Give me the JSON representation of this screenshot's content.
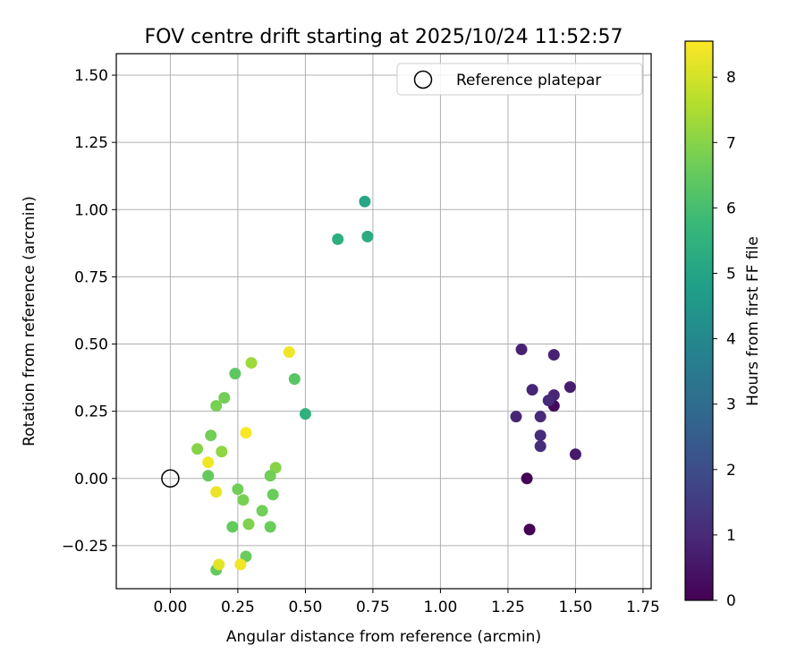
{
  "chart_data": {
    "type": "scatter",
    "title": "FOV centre drift starting at 2025/10/24 11:52:57",
    "xlabel": "Angular distance from reference (arcmin)",
    "ylabel": "Rotation from reference (arcmin)",
    "xlim": [
      -0.2,
      1.78
    ],
    "ylim": [
      -0.41,
      1.58
    ],
    "x_ticks": [
      "0.00",
      "0.25",
      "0.50",
      "0.75",
      "1.00",
      "1.25",
      "1.50",
      "1.75"
    ],
    "x_tick_values": [
      0,
      0.25,
      0.5,
      0.75,
      1.0,
      1.25,
      1.5,
      1.75
    ],
    "y_ticks": [
      "−0.25",
      "0.00",
      "0.25",
      "0.50",
      "0.75",
      "1.00",
      "1.25",
      "1.50"
    ],
    "y_tick_values": [
      -0.25,
      0,
      0.25,
      0.5,
      0.75,
      1.0,
      1.25,
      1.5
    ],
    "grid": true,
    "legend": {
      "position": "top-right",
      "entries": [
        {
          "label": "Reference platepar",
          "marker": "open-circle"
        }
      ]
    },
    "colorbar": {
      "label": "Hours from first FF file",
      "colormap": "viridis",
      "range": [
        0,
        8.55
      ],
      "ticks": [
        "0",
        "1",
        "2",
        "3",
        "4",
        "5",
        "6",
        "7",
        "8"
      ],
      "tick_values": [
        0,
        1,
        2,
        3,
        4,
        5,
        6,
        7,
        8
      ]
    },
    "reference_point": {
      "x": 0.0,
      "y": 0.0
    },
    "points": [
      {
        "x": 1.33,
        "y": -0.19,
        "hours": 0.0
      },
      {
        "x": 1.32,
        "y": 0.0,
        "hours": 0.1
      },
      {
        "x": 1.42,
        "y": 0.27,
        "hours": 0.2
      },
      {
        "x": 1.5,
        "y": 0.09,
        "hours": 0.6
      },
      {
        "x": 1.48,
        "y": 0.34,
        "hours": 0.7
      },
      {
        "x": 1.42,
        "y": 0.46,
        "hours": 0.8
      },
      {
        "x": 1.3,
        "y": 0.48,
        "hours": 0.8
      },
      {
        "x": 1.34,
        "y": 0.33,
        "hours": 0.9
      },
      {
        "x": 1.42,
        "y": 0.31,
        "hours": 0.9
      },
      {
        "x": 1.4,
        "y": 0.29,
        "hours": 1.0
      },
      {
        "x": 1.28,
        "y": 0.23,
        "hours": 0.9
      },
      {
        "x": 1.37,
        "y": 0.23,
        "hours": 1.0
      },
      {
        "x": 1.37,
        "y": 0.16,
        "hours": 1.1
      },
      {
        "x": 1.37,
        "y": 0.12,
        "hours": 1.1
      },
      {
        "x": 0.72,
        "y": 1.03,
        "hours": 5.1
      },
      {
        "x": 0.73,
        "y": 0.9,
        "hours": 5.3
      },
      {
        "x": 0.62,
        "y": 0.89,
        "hours": 5.4
      },
      {
        "x": 0.5,
        "y": 0.24,
        "hours": 5.5
      },
      {
        "x": 0.46,
        "y": 0.37,
        "hours": 6.3
      },
      {
        "x": 0.24,
        "y": 0.39,
        "hours": 6.4
      },
      {
        "x": 0.2,
        "y": 0.3,
        "hours": 6.7
      },
      {
        "x": 0.17,
        "y": 0.27,
        "hours": 6.8
      },
      {
        "x": 0.15,
        "y": 0.16,
        "hours": 6.7
      },
      {
        "x": 0.1,
        "y": 0.11,
        "hours": 7.0
      },
      {
        "x": 0.19,
        "y": 0.1,
        "hours": 7.1
      },
      {
        "x": 0.14,
        "y": 0.01,
        "hours": 6.5
      },
      {
        "x": 0.39,
        "y": 0.04,
        "hours": 7.0
      },
      {
        "x": 0.37,
        "y": 0.01,
        "hours": 6.7
      },
      {
        "x": 0.38,
        "y": -0.06,
        "hours": 6.6
      },
      {
        "x": 0.25,
        "y": -0.04,
        "hours": 6.7
      },
      {
        "x": 0.27,
        "y": -0.08,
        "hours": 6.8
      },
      {
        "x": 0.34,
        "y": -0.12,
        "hours": 6.7
      },
      {
        "x": 0.29,
        "y": -0.17,
        "hours": 6.9
      },
      {
        "x": 0.37,
        "y": -0.18,
        "hours": 6.6
      },
      {
        "x": 0.23,
        "y": -0.18,
        "hours": 6.5
      },
      {
        "x": 0.28,
        "y": -0.29,
        "hours": 6.6
      },
      {
        "x": 0.17,
        "y": -0.34,
        "hours": 6.5
      },
      {
        "x": 0.3,
        "y": 0.43,
        "hours": 7.3
      },
      {
        "x": 0.44,
        "y": 0.47,
        "hours": 8.4
      },
      {
        "x": 0.28,
        "y": 0.17,
        "hours": 8.5
      },
      {
        "x": 0.14,
        "y": 0.06,
        "hours": 8.4
      },
      {
        "x": 0.17,
        "y": -0.05,
        "hours": 8.3
      },
      {
        "x": 0.18,
        "y": -0.32,
        "hours": 8.2
      },
      {
        "x": 0.26,
        "y": -0.32,
        "hours": 8.4
      }
    ]
  }
}
